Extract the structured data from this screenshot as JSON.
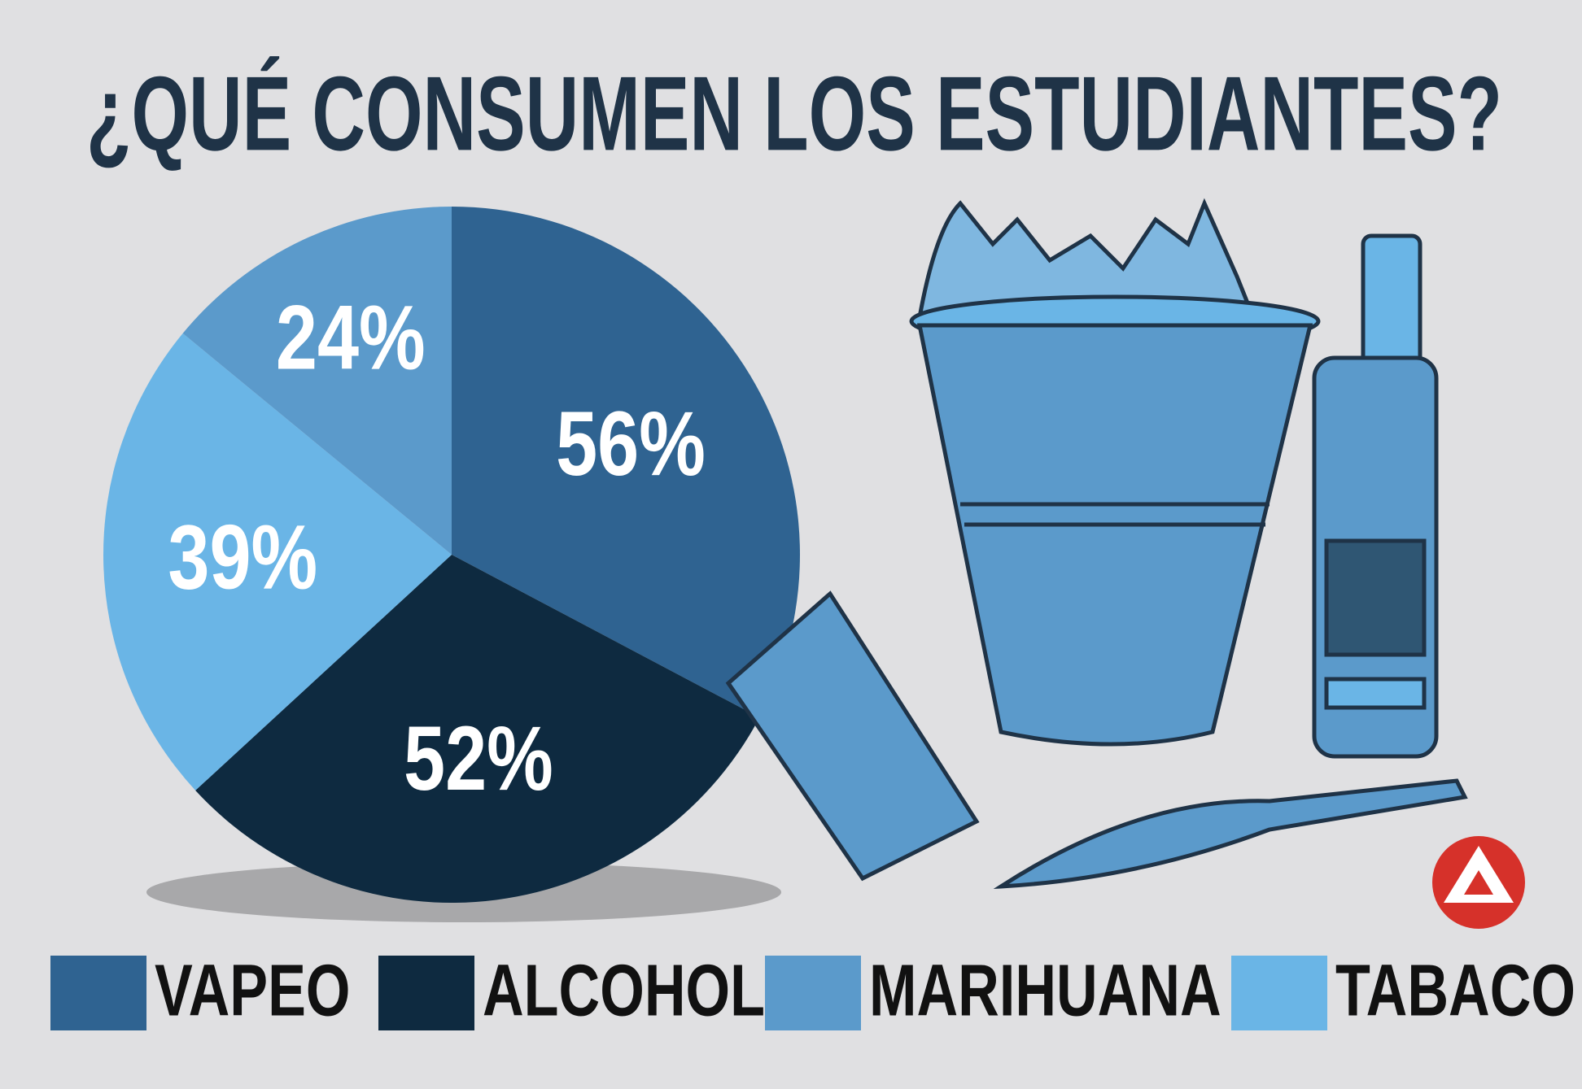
{
  "chart_data": {
    "type": "pie",
    "title": "¿QUÉ CONSUMEN LOS ESTUDIANTES?",
    "categories": [
      "VAPEO",
      "ALCOHOL",
      "MARIHUANA",
      "TABACO"
    ],
    "values": [
      56,
      52,
      24,
      39
    ],
    "value_labels": [
      "56%",
      "52%",
      "24%",
      "39%"
    ],
    "colors": [
      "#2f6391",
      "#0e2a40",
      "#5b9acb",
      "#6ab5e6"
    ],
    "legend": "bottom"
  }
}
